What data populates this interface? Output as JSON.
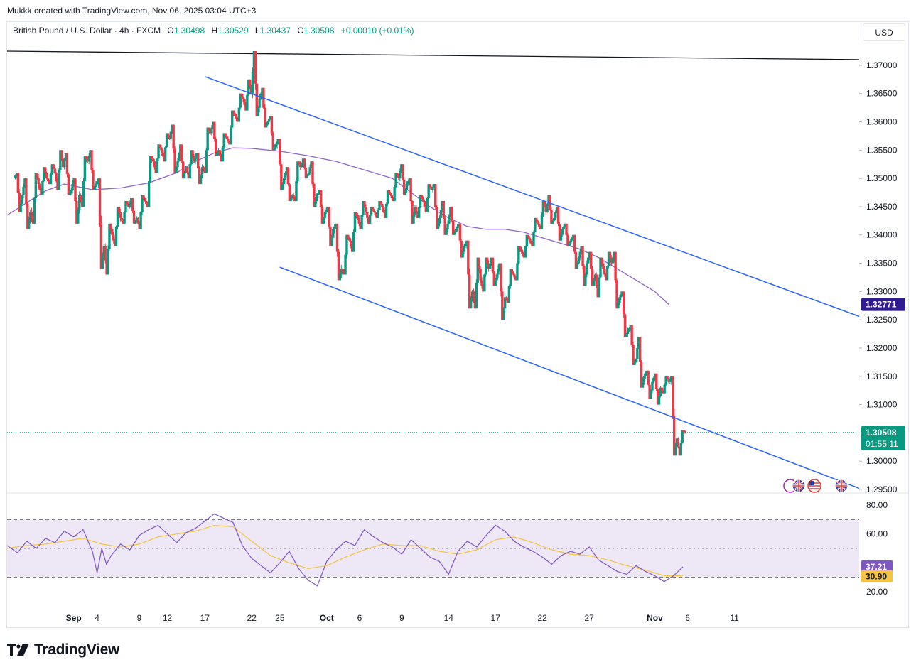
{
  "header_note": "Mukkk created with TradingView.com, Nov 06, 2025 03:04 UTC+3",
  "legend": {
    "symbol": "British Pound / U.S. Dollar · 4h · FXCM",
    "o_label": "O",
    "o": "1.30498",
    "h_label": "H",
    "h": "1.30529",
    "l_label": "L",
    "l": "1.30437",
    "c_label": "C",
    "c": "1.30508",
    "change": "+0.00010 (+0.01%)"
  },
  "currency": "USD",
  "brand": "TradingView",
  "colors": {
    "up": "#089981",
    "down": "#f23645",
    "channel": "#2962ff",
    "ma": "#8e63c7",
    "rsi": "#7e57c2",
    "rsi_ma": "#f5c542",
    "rsi_band": "#ede7f6",
    "price_tag": "#089981",
    "ma_tag": "#311b92"
  },
  "chart_data": [
    {
      "type": "candlestick",
      "symbol": "GBP/USD",
      "timeframe": "4h",
      "ylim": [
        1.295,
        1.3725
      ],
      "y_ticks": [
        "1.37000",
        "1.36500",
        "1.36000",
        "1.35500",
        "1.35000",
        "1.34500",
        "1.34000",
        "1.33500",
        "1.33000",
        "1.32500",
        "1.32000",
        "1.31500",
        "1.31000",
        "1.30500",
        "1.30000",
        "1.29500"
      ],
      "y_tick_values": [
        1.37,
        1.365,
        1.36,
        1.355,
        1.35,
        1.345,
        1.34,
        1.335,
        1.33,
        1.325,
        1.32,
        1.315,
        1.31,
        1.305,
        1.3,
        1.295
      ],
      "x_ticks": [
        "Sep",
        "4",
        "9",
        "12",
        "17",
        "22",
        "25",
        "Oct",
        "6",
        "9",
        "14",
        "17",
        "22",
        "27",
        "Nov",
        "6",
        "11"
      ],
      "x_tick_index": [
        0,
        2.5,
        7,
        10,
        14,
        19,
        22,
        27,
        30.5,
        35,
        40,
        45,
        50,
        55,
        62,
        65.5,
        70.5
      ],
      "x_index_range": [
        -7.1,
        83.8
      ],
      "daily_ohlc": [
        [
          1.35,
          1.351,
          1.344,
          1.347
        ],
        [
          1.347,
          1.35,
          1.341,
          1.344
        ],
        [
          1.344,
          1.351,
          1.342,
          1.349
        ],
        [
          1.349,
          1.352,
          1.347,
          1.35
        ],
        [
          1.35,
          1.3525,
          1.349,
          1.351
        ],
        [
          1.351,
          1.355,
          1.348,
          1.352
        ],
        [
          1.352,
          1.3545,
          1.347,
          1.348
        ],
        [
          1.348,
          1.35,
          1.342,
          1.347
        ],
        [
          1.347,
          1.354,
          1.345,
          1.353
        ],
        [
          1.353,
          1.355,
          1.348,
          1.349
        ],
        [
          1.349,
          1.35,
          1.334,
          1.338
        ],
        [
          1.338,
          1.342,
          1.333,
          1.34
        ],
        [
          1.34,
          1.345,
          1.338,
          1.343
        ],
        [
          1.343,
          1.346,
          1.342,
          1.345
        ],
        [
          1.345,
          1.3465,
          1.342,
          1.343
        ],
        [
          1.343,
          1.347,
          1.341,
          1.346
        ],
        [
          1.346,
          1.354,
          1.345,
          1.353
        ],
        [
          1.353,
          1.356,
          1.351,
          1.355
        ],
        [
          1.355,
          1.358,
          1.353,
          1.357
        ],
        [
          1.357,
          1.3595,
          1.351,
          1.353
        ],
        [
          1.353,
          1.356,
          1.35,
          1.352
        ],
        [
          1.352,
          1.355,
          1.35,
          1.353
        ],
        [
          1.353,
          1.3545,
          1.349,
          1.352
        ],
        [
          1.352,
          1.359,
          1.351,
          1.358
        ],
        [
          1.358,
          1.36,
          1.354,
          1.355
        ],
        [
          1.355,
          1.358,
          1.353,
          1.357
        ],
        [
          1.357,
          1.362,
          1.356,
          1.361
        ],
        [
          1.361,
          1.365,
          1.36,
          1.364
        ],
        [
          1.364,
          1.3675,
          1.362,
          1.365
        ],
        [
          1.365,
          1.3725,
          1.361,
          1.364
        ],
        [
          1.364,
          1.366,
          1.359,
          1.36
        ],
        [
          1.36,
          1.361,
          1.355,
          1.356
        ],
        [
          1.356,
          1.357,
          1.348,
          1.35
        ],
        [
          1.35,
          1.352,
          1.346,
          1.347
        ],
        [
          1.347,
          1.353,
          1.346,
          1.352
        ],
        [
          1.352,
          1.3535,
          1.35,
          1.351
        ],
        [
          1.351,
          1.353,
          1.345,
          1.347
        ],
        [
          1.347,
          1.348,
          1.342,
          1.344
        ],
        [
          1.344,
          1.345,
          1.338,
          1.341
        ],
        [
          1.341,
          1.342,
          1.332,
          1.334
        ],
        [
          1.334,
          1.34,
          1.333,
          1.339
        ],
        [
          1.339,
          1.344,
          1.337,
          1.343
        ],
        [
          1.343,
          1.346,
          1.341,
          1.344
        ],
        [
          1.344,
          1.345,
          1.342,
          1.344
        ],
        [
          1.344,
          1.346,
          1.343,
          1.345
        ],
        [
          1.345,
          1.348,
          1.343,
          1.347
        ],
        [
          1.347,
          1.351,
          1.346,
          1.35
        ],
        [
          1.35,
          1.3525,
          1.347,
          1.349
        ],
        [
          1.349,
          1.35,
          1.342,
          1.345
        ],
        [
          1.345,
          1.347,
          1.343,
          1.346
        ],
        [
          1.346,
          1.349,
          1.344,
          1.348
        ],
        [
          1.348,
          1.349,
          1.341,
          1.343
        ],
        [
          1.343,
          1.346,
          1.34,
          1.342
        ],
        [
          1.342,
          1.345,
          1.34,
          1.341
        ],
        [
          1.341,
          1.342,
          1.336,
          1.338
        ],
        [
          1.338,
          1.339,
          1.327,
          1.33
        ],
        [
          1.33,
          1.336,
          1.327,
          1.332
        ],
        [
          1.332,
          1.336,
          1.33,
          1.334
        ],
        [
          1.334,
          1.336,
          1.331,
          1.333
        ],
        [
          1.333,
          1.335,
          1.325,
          1.329
        ],
        [
          1.329,
          1.334,
          1.328,
          1.333
        ],
        [
          1.333,
          1.338,
          1.332,
          1.337
        ],
        [
          1.337,
          1.34,
          1.336,
          1.339
        ],
        [
          1.339,
          1.343,
          1.338,
          1.342
        ],
        [
          1.342,
          1.346,
          1.341,
          1.344
        ],
        [
          1.344,
          1.347,
          1.342,
          1.343
        ],
        [
          1.343,
          1.345,
          1.339,
          1.341
        ],
        [
          1.341,
          1.342,
          1.338,
          1.339
        ],
        [
          1.339,
          1.34,
          1.334,
          1.336
        ],
        [
          1.336,
          1.338,
          1.331,
          1.335
        ],
        [
          1.335,
          1.337,
          1.331,
          1.333
        ],
        [
          1.333,
          1.336,
          1.329,
          1.334
        ],
        [
          1.334,
          1.337,
          1.332,
          1.335
        ],
        [
          1.335,
          1.337,
          1.327,
          1.329
        ],
        [
          1.329,
          1.33,
          1.322,
          1.323
        ],
        [
          1.323,
          1.324,
          1.317,
          1.318
        ],
        [
          1.318,
          1.322,
          1.313,
          1.315
        ],
        [
          1.315,
          1.316,
          1.311,
          1.314
        ],
        [
          1.314,
          1.3155,
          1.31,
          1.313
        ],
        [
          1.313,
          1.315,
          1.312,
          1.314
        ],
        [
          1.314,
          1.315,
          1.301,
          1.304
        ],
        [
          1.304,
          1.3055,
          1.301,
          1.30508
        ]
      ],
      "moving_average": [
        [
          -7.1,
          1.3435
        ],
        [
          -3,
          1.3478
        ],
        [
          -1,
          1.349
        ],
        [
          2,
          1.348
        ],
        [
          5,
          1.3483
        ],
        [
          8,
          1.3492
        ],
        [
          11,
          1.351
        ],
        [
          13,
          1.353
        ],
        [
          15,
          1.3545
        ],
        [
          17,
          1.3554
        ],
        [
          19,
          1.3553
        ],
        [
          22,
          1.3548
        ],
        [
          25,
          1.354
        ],
        [
          28,
          1.353
        ],
        [
          31,
          1.3515
        ],
        [
          34,
          1.35
        ],
        [
          36,
          1.3475
        ],
        [
          38,
          1.345
        ],
        [
          40,
          1.343
        ],
        [
          42,
          1.3415
        ],
        [
          44,
          1.341
        ],
        [
          46,
          1.341
        ],
        [
          48,
          1.3405
        ],
        [
          50,
          1.3395
        ],
        [
          52,
          1.3385
        ],
        [
          54,
          1.3375
        ],
        [
          56,
          1.336
        ],
        [
          58,
          1.334
        ],
        [
          60,
          1.332
        ],
        [
          62,
          1.33
        ],
        [
          63.5,
          1.3277
        ]
      ],
      "resistance_line": [
        [
          -7.1,
          1.3725
        ],
        [
          83.8,
          1.371
        ]
      ],
      "channel_upper": [
        [
          14,
          1.368
        ],
        [
          83.8,
          1.3256
        ]
      ],
      "channel_lower": [
        [
          22,
          1.3343
        ],
        [
          83.8,
          1.2952
        ]
      ],
      "last_price": "1.30508",
      "countdown": "01:55:11",
      "ma_value": "1.32771",
      "last_price_value": 1.30508,
      "ma_last_value": 1.32771
    },
    {
      "type": "line",
      "name": "RSI",
      "ylim": [
        13,
        86
      ],
      "y_ticks": [
        "80.00",
        "60.00",
        "40.00",
        "20.00"
      ],
      "y_tick_values": [
        80,
        60,
        40,
        20
      ],
      "bands": [
        30,
        50,
        70
      ],
      "rsi_value": "37.21",
      "rsi_ma_value": "30.90",
      "rsi_last": 37.21,
      "rsi_ma_last": 30.9,
      "rsi": [
        [
          -7.1,
          52
        ],
        [
          -6,
          47
        ],
        [
          -5,
          55
        ],
        [
          -4,
          50
        ],
        [
          -3,
          57
        ],
        [
          -2,
          54
        ],
        [
          -1,
          62
        ],
        [
          0,
          58
        ],
        [
          1,
          63
        ],
        [
          2,
          48
        ],
        [
          2.5,
          33
        ],
        [
          3,
          50
        ],
        [
          3.5,
          39
        ],
        [
          4,
          45
        ],
        [
          5,
          53
        ],
        [
          6,
          49
        ],
        [
          7,
          59
        ],
        [
          8,
          63
        ],
        [
          9,
          66
        ],
        [
          10,
          60
        ],
        [
          11,
          54
        ],
        [
          12,
          61
        ],
        [
          13,
          64
        ],
        [
          14,
          69
        ],
        [
          15,
          74
        ],
        [
          16,
          71
        ],
        [
          17,
          68
        ],
        [
          18,
          52
        ],
        [
          19,
          43
        ],
        [
          20,
          38
        ],
        [
          21,
          33
        ],
        [
          22,
          40
        ],
        [
          23,
          48
        ],
        [
          24,
          36
        ],
        [
          25,
          28
        ],
        [
          26,
          24
        ],
        [
          27,
          41
        ],
        [
          28,
          49
        ],
        [
          29,
          55
        ],
        [
          30,
          52
        ],
        [
          31,
          63
        ],
        [
          32,
          58
        ],
        [
          33,
          54
        ],
        [
          34,
          51
        ],
        [
          35,
          46
        ],
        [
          36,
          56
        ],
        [
          37,
          50
        ],
        [
          38,
          44
        ],
        [
          39,
          41
        ],
        [
          40,
          32
        ],
        [
          41,
          48
        ],
        [
          42,
          55
        ],
        [
          43,
          51
        ],
        [
          44,
          59
        ],
        [
          45,
          66
        ],
        [
          46,
          62
        ],
        [
          47,
          55
        ],
        [
          48,
          51
        ],
        [
          49,
          48
        ],
        [
          50,
          44
        ],
        [
          51,
          39
        ],
        [
          52,
          45
        ],
        [
          53,
          48
        ],
        [
          54,
          46
        ],
        [
          55,
          51
        ],
        [
          56,
          42
        ],
        [
          57,
          38
        ],
        [
          58,
          34
        ],
        [
          59,
          32
        ],
        [
          60,
          38
        ],
        [
          61,
          34
        ],
        [
          62,
          31
        ],
        [
          63,
          27
        ],
        [
          64,
          31
        ],
        [
          65,
          37.21
        ]
      ],
      "rsi_ma": [
        [
          -7.1,
          50
        ],
        [
          -5,
          52
        ],
        [
          -3,
          53
        ],
        [
          -1,
          55
        ],
        [
          1,
          57
        ],
        [
          3,
          53
        ],
        [
          5,
          51
        ],
        [
          7,
          53
        ],
        [
          9,
          58
        ],
        [
          11,
          60
        ],
        [
          13,
          62
        ],
        [
          15,
          66
        ],
        [
          17,
          65
        ],
        [
          19,
          55
        ],
        [
          21,
          45
        ],
        [
          23,
          40
        ],
        [
          25,
          36
        ],
        [
          27,
          38
        ],
        [
          29,
          44
        ],
        [
          31,
          49
        ],
        [
          33,
          53
        ],
        [
          35,
          52
        ],
        [
          37,
          52
        ],
        [
          39,
          48
        ],
        [
          41,
          46
        ],
        [
          43,
          49
        ],
        [
          45,
          56
        ],
        [
          47,
          58
        ],
        [
          49,
          54
        ],
        [
          51,
          49
        ],
        [
          53,
          46
        ],
        [
          55,
          45
        ],
        [
          57,
          42
        ],
        [
          59,
          38
        ],
        [
          61,
          35
        ],
        [
          63,
          31
        ],
        [
          65,
          30.9
        ]
      ]
    }
  ]
}
